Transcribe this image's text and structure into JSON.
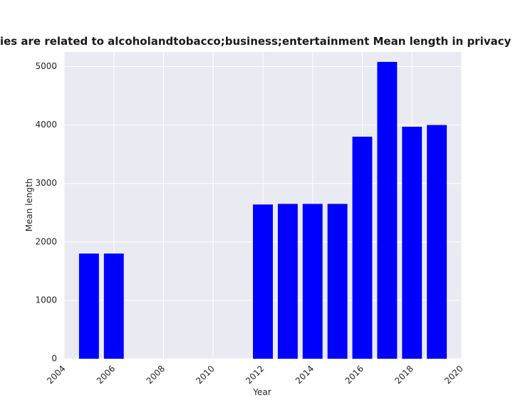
{
  "chart_data": {
    "type": "bar",
    "title": "Categories are related to alcoholandtobacco;business;entertainment Mean length in privacy policies",
    "xlabel": "Year",
    "ylabel": "Mean length",
    "x": [
      2005,
      2006,
      2012,
      2013,
      2014,
      2015,
      2016,
      2017,
      2018,
      2019
    ],
    "values": [
      1800,
      1800,
      2640,
      2650,
      2650,
      2650,
      3800,
      5080,
      3970,
      4000
    ],
    "xlim": [
      2004,
      2020
    ],
    "ylim": [
      0,
      5250
    ],
    "xticks": [
      2004,
      2006,
      2008,
      2010,
      2012,
      2014,
      2016,
      2018,
      2020
    ],
    "yticks": [
      0,
      1000,
      2000,
      3000,
      4000,
      5000
    ],
    "bar_color": "#0000ff",
    "plot_background": "#eaeaf2",
    "grid": true
  }
}
